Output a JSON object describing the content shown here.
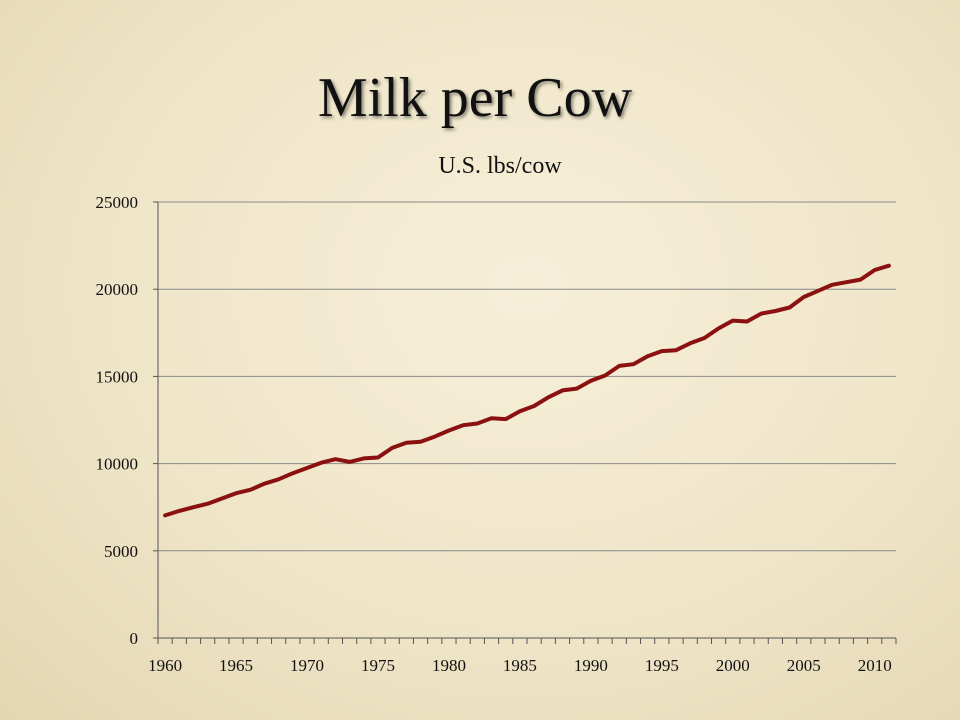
{
  "slide": {
    "title": "Milk per Cow"
  },
  "chart_data": {
    "type": "line",
    "title": "U.S. lbs/cow",
    "xlabel": "",
    "ylabel": "",
    "ylim": [
      0,
      25000
    ],
    "yticks": [
      0,
      5000,
      10000,
      15000,
      20000,
      25000
    ],
    "xlim": [
      1960,
      2011
    ],
    "xticks": [
      1960,
      1965,
      1970,
      1975,
      1980,
      1985,
      1990,
      1995,
      2000,
      2005,
      2010
    ],
    "grid": true,
    "legend": "none",
    "colors": {
      "line": "#8b1010",
      "grid": "#8a8a8a",
      "axis": "#555555"
    },
    "series": [
      {
        "x": [
          1960,
          1961,
          1962,
          1963,
          1964,
          1965,
          1966,
          1967,
          1968,
          1969,
          1970,
          1971,
          1972,
          1973,
          1974,
          1975,
          1976,
          1977,
          1978,
          1979,
          1980,
          1981,
          1982,
          1983,
          1984,
          1985,
          1986,
          1987,
          1988,
          1989,
          1990,
          1991,
          1992,
          1993,
          1994,
          1995,
          1996,
          1997,
          1998,
          1999,
          2000,
          2001,
          2002,
          2003,
          2004,
          2005,
          2006,
          2007,
          2008,
          2009,
          2010,
          2011
        ],
        "values": [
          7030,
          7290,
          7500,
          7700,
          8000,
          8300,
          8500,
          8850,
          9100,
          9450,
          9750,
          10050,
          10250,
          10100,
          10300,
          10350,
          10900,
          11200,
          11250,
          11550,
          11900,
          12200,
          12300,
          12600,
          12550,
          13000,
          13300,
          13800,
          14200,
          14300,
          14750,
          15050,
          15600,
          15700,
          16150,
          16450,
          16500,
          16900,
          17200,
          17750,
          18200,
          18150,
          18600,
          18750,
          18950,
          19550,
          19900,
          20250,
          20400,
          20550,
          21100,
          21350
        ]
      }
    ]
  }
}
